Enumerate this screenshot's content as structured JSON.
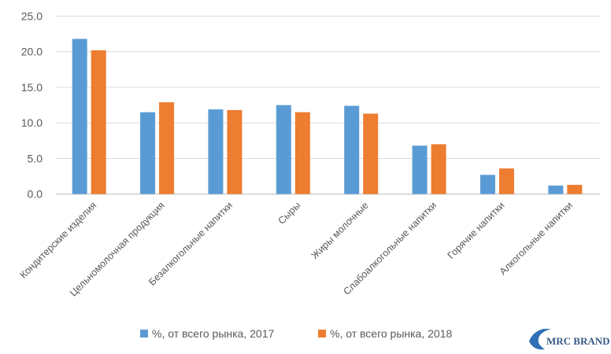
{
  "chart_data": {
    "type": "bar",
    "title": "",
    "xlabel": "",
    "ylabel": "",
    "ylim": [
      0,
      25
    ],
    "yticks": [
      "0.0",
      "5.0",
      "10.0",
      "15.0",
      "20.0",
      "25.0"
    ],
    "grid": true,
    "legend_position": "bottom",
    "categories": [
      "Кондитерские изделия",
      "Цельномолочная продукция",
      "Безалкогольные напитки",
      "Сыры",
      "Жиры молочные",
      "Слабоалкогольные напитки",
      "Горячие напитки",
      "Алкогольные напитки"
    ],
    "series": [
      {
        "name": "%, от всего рынка, 2017",
        "color": "#5B9BD5",
        "values": [
          21.8,
          11.5,
          11.9,
          12.5,
          12.4,
          6.8,
          2.7,
          1.2
        ]
      },
      {
        "name": "%, от всего рынка, 2018",
        "color": "#ED7D31",
        "values": [
          20.2,
          12.9,
          11.8,
          11.5,
          11.3,
          7.0,
          3.6,
          1.3
        ]
      }
    ]
  },
  "logo": {
    "text": "MRC BRAND"
  }
}
